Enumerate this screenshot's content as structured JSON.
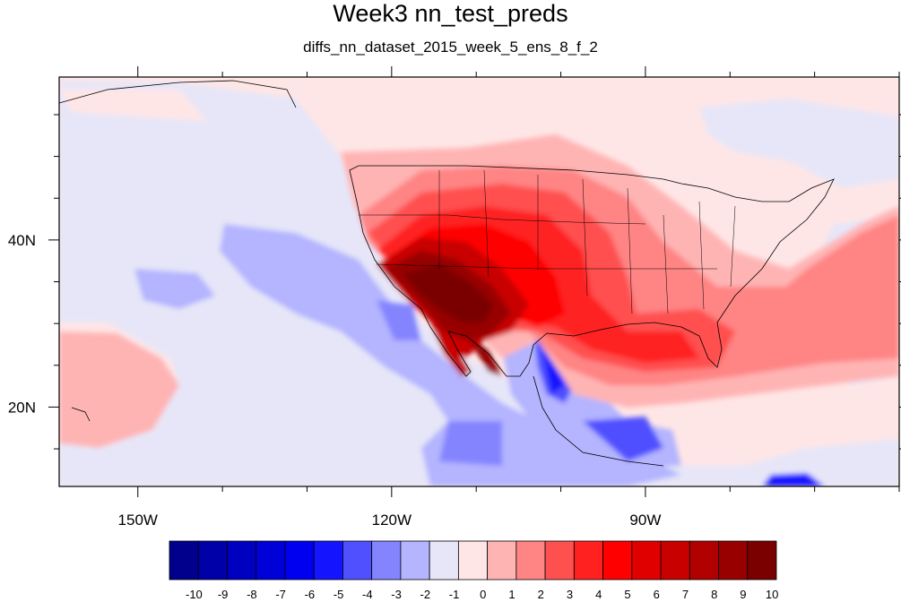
{
  "title": "Week3 nn_test_preds",
  "subtitle": "diffs_nn_dataset_2015_week_5_ens_8_f_2",
  "axes": {
    "x_ticks": [
      {
        "lon": -150,
        "label": "150W"
      },
      {
        "lon": -120,
        "label": "120W"
      },
      {
        "lon": -90,
        "label": "90W"
      }
    ],
    "y_ticks": [
      {
        "lat": 40,
        "label": "40N"
      },
      {
        "lat": 20,
        "label": "20N"
      }
    ],
    "lon_range": [
      -159.3,
      -60
    ],
    "lat_range": [
      10.5,
      59.5
    ]
  },
  "colorbar": {
    "labels": [
      "-10",
      "-9",
      "-8",
      "-7",
      "-6",
      "-5",
      "-4",
      "-3",
      "-2",
      "-1",
      "0",
      "1",
      "2",
      "3",
      "4",
      "5",
      "6",
      "7",
      "8",
      "9",
      "10"
    ],
    "colors": [
      "#00008c",
      "#0000a8",
      "#0000c0",
      "#0000d8",
      "#0000f0",
      "#1414ff",
      "#5050ff",
      "#8484ff",
      "#b4b4ff",
      "#e6e6f8",
      "#ffe6e6",
      "#ffb4b4",
      "#ff8484",
      "#ff5050",
      "#ff2020",
      "#ff0000",
      "#e00000",
      "#c80000",
      "#b00000",
      "#980000",
      "#7a0000"
    ]
  },
  "colors": {
    "background_positive": "#ffe6e6",
    "background_negative": "#e6e6f8"
  }
}
